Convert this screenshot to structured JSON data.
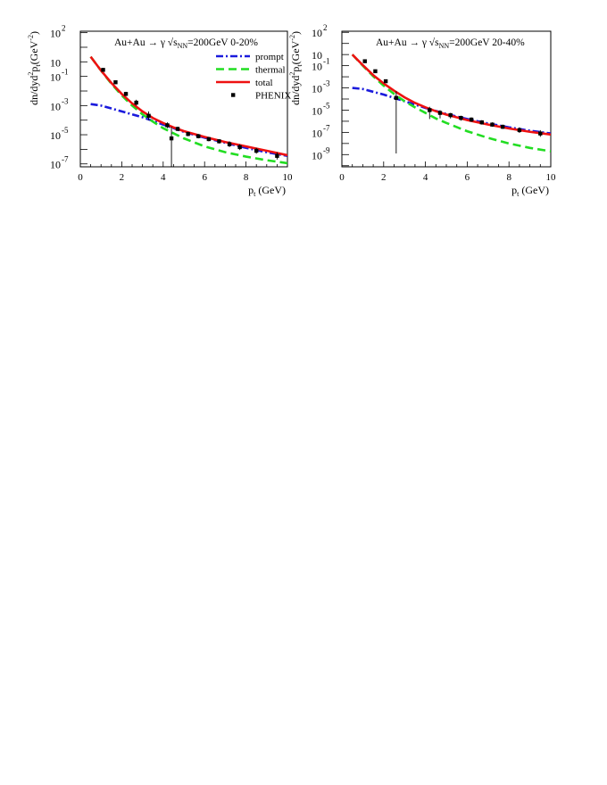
{
  "chart_data": [
    {
      "type": "line",
      "title": "Au+Au → γ √s",
      "title_sub": "NN",
      "title_tail": "=200GeV 0-20%",
      "xlabel": "p",
      "xlabel_sub": "t",
      "xlabel_tail": " (GeV)",
      "ylabel": "dn/dyd",
      "ylabel_sup": "2",
      "ylabel_mid": "p",
      "ylabel_sub": "t",
      "ylabel_tail": "(GeV",
      "ylabel_sup2": "-2",
      "ylabel_end": ")",
      "xlim": [
        0,
        10
      ],
      "ylim_log10": [
        -7.2,
        2.1
      ],
      "x_ticks": [
        "0",
        "2",
        "4",
        "6",
        "8",
        "10"
      ],
      "y_ticks": [
        {
          "base": "10",
          "exp": "2"
        },
        {
          "base": "10",
          "exp": ""
        },
        {
          "base": "10",
          "exp": "-1"
        },
        {
          "base": "10",
          "exp": "-3"
        },
        {
          "base": "10",
          "exp": "-5"
        },
        {
          "base": "10",
          "exp": "-7"
        }
      ],
      "legend_position": "top-right",
      "series": [
        {
          "name": "prompt",
          "color": "#1a1adc",
          "style": "dash-dot",
          "x": [
            0.5,
            1,
            2,
            3,
            4,
            5,
            6,
            7,
            8,
            9,
            10
          ],
          "y": [
            -2.9,
            -3.0,
            -3.4,
            -3.8,
            -4.3,
            -4.8,
            -5.2,
            -5.55,
            -5.9,
            -6.2,
            -6.45
          ]
        },
        {
          "name": "thermal",
          "color": "#22dd22",
          "style": "dashed",
          "x": [
            0.5,
            1,
            1.5,
            2,
            2.5,
            3,
            3.5,
            4,
            4.5,
            5,
            6,
            7,
            8,
            9,
            10
          ],
          "y": [
            0.35,
            -0.6,
            -1.5,
            -2.3,
            -3.0,
            -3.6,
            -4.1,
            -4.55,
            -4.9,
            -5.25,
            -5.8,
            -6.2,
            -6.5,
            -6.75,
            -6.95
          ]
        },
        {
          "name": "total",
          "color": "#ee1111",
          "style": "solid",
          "x": [
            0.5,
            1,
            1.5,
            2,
            2.5,
            3,
            3.5,
            4,
            4.5,
            5,
            6,
            7,
            8,
            9,
            10
          ],
          "y": [
            0.35,
            -0.6,
            -1.45,
            -2.2,
            -2.85,
            -3.4,
            -3.85,
            -4.2,
            -4.5,
            -4.75,
            -5.15,
            -5.5,
            -5.8,
            -6.1,
            -6.4
          ]
        },
        {
          "name": "PHENIX",
          "color": "#000000",
          "style": "markers",
          "x": [
            1.1,
            1.7,
            2.2,
            2.7,
            3.3,
            4.2,
            4.4,
            4.7,
            5.2,
            5.7,
            6.2,
            6.7,
            7.2,
            7.7,
            8.5,
            9.5
          ],
          "y": [
            -0.55,
            -1.4,
            -2.2,
            -2.8,
            -3.7,
            -4.35,
            -5.25,
            -4.6,
            -4.95,
            -5.1,
            -5.3,
            -5.45,
            -5.65,
            -5.85,
            -6.1,
            -6.45
          ],
          "err_low": [
            0.1,
            0.12,
            0.15,
            0.2,
            0.3,
            0.2,
            2.0,
            0.15,
            0.15,
            0.15,
            0.15,
            0.15,
            0.2,
            0.2,
            0.2,
            0.25
          ],
          "err_high": [
            0.1,
            0.12,
            0.15,
            0.2,
            0.3,
            0.2,
            0.8,
            0.15,
            0.15,
            0.15,
            0.15,
            0.15,
            0.2,
            0.2,
            0.2,
            0.25
          ]
        }
      ]
    },
    {
      "type": "line",
      "title": "Au+Au → γ     √s",
      "title_sub": "NN",
      "title_tail": "=200GeV  20-40%",
      "xlabel": "p",
      "xlabel_sub": "t",
      "xlabel_tail": " (GeV)",
      "ylabel": "dn/dyd",
      "ylabel_sup": "2",
      "ylabel_mid": "p",
      "ylabel_sub": "t",
      "ylabel_tail": "(GeV",
      "ylabel_sup2": "-2",
      "ylabel_end": ")",
      "xlim": [
        0,
        10
      ],
      "ylim_log10": [
        -10.1,
        2.1
      ],
      "x_ticks": [
        "0",
        "2",
        "4",
        "6",
        "8",
        "10"
      ],
      "y_ticks": [
        {
          "base": "10",
          "exp": "2"
        },
        {
          "base": "10",
          "exp": ""
        },
        {
          "base": "10",
          "exp": "-1"
        },
        {
          "base": "10",
          "exp": "-3"
        },
        {
          "base": "10",
          "exp": "-5"
        },
        {
          "base": "10",
          "exp": "-7"
        },
        {
          "base": "10",
          "exp": "-9"
        }
      ],
      "series": [
        {
          "name": "prompt",
          "color": "#1a1adc",
          "style": "dash-dot",
          "x": [
            0.5,
            1,
            2,
            3,
            4,
            5,
            6,
            7,
            8,
            9,
            10
          ],
          "y": [
            -3.0,
            -3.1,
            -3.6,
            -4.2,
            -4.8,
            -5.35,
            -5.8,
            -6.2,
            -6.55,
            -6.85,
            -7.1
          ]
        },
        {
          "name": "thermal",
          "color": "#22dd22",
          "style": "dashed",
          "x": [
            0.5,
            1,
            1.5,
            2,
            2.5,
            3,
            3.5,
            4,
            4.5,
            5,
            6,
            7,
            8,
            9,
            10
          ],
          "y": [
            0.0,
            -1.0,
            -1.95,
            -2.8,
            -3.55,
            -4.2,
            -4.75,
            -5.25,
            -5.75,
            -6.15,
            -6.9,
            -7.5,
            -8.0,
            -8.4,
            -8.7
          ]
        },
        {
          "name": "total",
          "color": "#ee1111",
          "style": "solid",
          "x": [
            0.5,
            1,
            1.5,
            2,
            2.5,
            3,
            3.5,
            4,
            4.5,
            5,
            6,
            7,
            8,
            9,
            10
          ],
          "y": [
            0.0,
            -0.95,
            -1.85,
            -2.6,
            -3.25,
            -3.85,
            -4.35,
            -4.75,
            -5.1,
            -5.4,
            -5.9,
            -6.3,
            -6.65,
            -6.95,
            -7.2
          ]
        },
        {
          "name": "PHENIX",
          "color": "#000000",
          "style": "markers",
          "x": [
            1.1,
            1.6,
            2.1,
            2.6,
            4.2,
            4.7,
            5.2,
            5.7,
            6.2,
            6.7,
            7.2,
            7.7,
            8.5,
            9.5
          ],
          "y": [
            -0.6,
            -1.5,
            -2.4,
            -3.9,
            -5.0,
            -5.25,
            -5.45,
            -5.7,
            -5.85,
            -6.1,
            -6.3,
            -6.5,
            -6.8,
            -7.1
          ],
          "err_low": [
            0.1,
            0.12,
            0.15,
            5.0,
            0.8,
            0.5,
            0.3,
            0.25,
            0.2,
            0.2,
            0.2,
            0.2,
            0.25,
            0.3
          ],
          "err_high": [
            0.1,
            0.12,
            0.15,
            0.6,
            0.3,
            0.25,
            0.2,
            0.2,
            0.2,
            0.2,
            0.2,
            0.2,
            0.25,
            0.3
          ]
        }
      ]
    }
  ]
}
